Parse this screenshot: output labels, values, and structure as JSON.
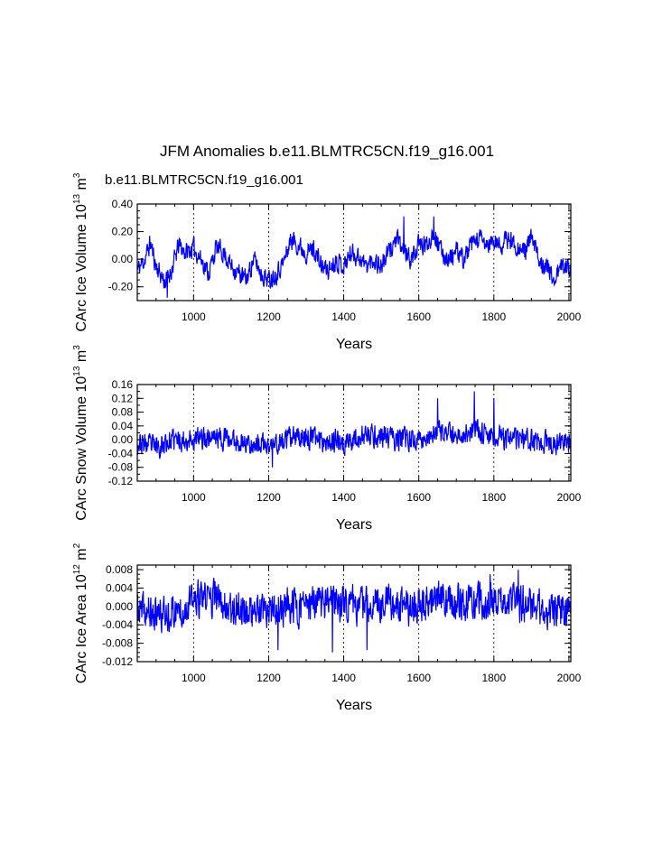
{
  "title": "JFM Anomalies b.e11.BLMTRC5CN.f19_g16.001",
  "subtitle": "b.e11.BLMTRC5CN.f19_g16.001",
  "series_color": "#0000ff",
  "chart_data": [
    {
      "type": "line",
      "title": "JFM Anomalies b.e11.BLMTRC5CN.f19_g16.001",
      "series_name": "b.e11.BLMTRC5CN.f19_g16.001",
      "xlabel": "Years",
      "ylabel": "CArc Ice Volume 10",
      "ylabel_exp": "13",
      "ylabel_unit": " m",
      "ylabel_unit_exp": "3",
      "xlim": [
        850,
        2005
      ],
      "ylim": [
        -0.3,
        0.4
      ],
      "xticks": [
        1000,
        1200,
        1400,
        1600,
        1800,
        2000
      ],
      "xtick_labels": [
        "1000",
        "1200",
        "1400",
        "1600",
        "1800",
        "2000"
      ],
      "yticks": [
        0.4,
        0.2,
        0.0,
        -0.2
      ],
      "ytick_labels": [
        "0.40",
        "0.20",
        "0.00",
        "-0.20"
      ],
      "yminor_step": 0.05,
      "grid": "vertical dotted at major x ticks",
      "anchors": [
        [
          850,
          -0.08
        ],
        [
          870,
          0.0
        ],
        [
          885,
          0.12
        ],
        [
          900,
          -0.05
        ],
        [
          925,
          -0.17
        ],
        [
          945,
          -0.05
        ],
        [
          960,
          0.1
        ],
        [
          980,
          0.05
        ],
        [
          1000,
          0.08
        ],
        [
          1020,
          0.0
        ],
        [
          1040,
          -0.1
        ],
        [
          1060,
          0.08
        ],
        [
          1080,
          0.05
        ],
        [
          1100,
          -0.05
        ],
        [
          1120,
          -0.1
        ],
        [
          1140,
          -0.15
        ],
        [
          1160,
          0.0
        ],
        [
          1180,
          -0.1
        ],
        [
          1200,
          -0.15
        ],
        [
          1220,
          -0.1
        ],
        [
          1240,
          -0.02
        ],
        [
          1260,
          0.15
        ],
        [
          1280,
          0.1
        ],
        [
          1300,
          0.05
        ],
        [
          1320,
          0.08
        ],
        [
          1340,
          -0.05
        ],
        [
          1360,
          -0.08
        ],
        [
          1380,
          0.0
        ],
        [
          1400,
          -0.05
        ],
        [
          1420,
          0.05
        ],
        [
          1440,
          0.02
        ],
        [
          1460,
          -0.05
        ],
        [
          1480,
          0.0
        ],
        [
          1500,
          -0.05
        ],
        [
          1520,
          0.05
        ],
        [
          1540,
          0.15
        ],
        [
          1560,
          0.05
        ],
        [
          1580,
          0.0
        ],
        [
          1600,
          0.1
        ],
        [
          1620,
          0.1
        ],
        [
          1640,
          0.2
        ],
        [
          1660,
          0.05
        ],
        [
          1680,
          0.0
        ],
        [
          1700,
          0.05
        ],
        [
          1720,
          0.0
        ],
        [
          1740,
          0.1
        ],
        [
          1760,
          0.15
        ],
        [
          1780,
          0.1
        ],
        [
          1800,
          0.12
        ],
        [
          1820,
          0.1
        ],
        [
          1840,
          0.15
        ],
        [
          1860,
          0.1
        ],
        [
          1880,
          0.05
        ],
        [
          1900,
          0.15
        ],
        [
          1920,
          0.0
        ],
        [
          1940,
          -0.05
        ],
        [
          1960,
          -0.15
        ],
        [
          1980,
          -0.05
        ],
        [
          2005,
          -0.05
        ]
      ],
      "noise_amplitude": 0.1,
      "extremes": [
        [
          930,
          -0.28
        ],
        [
          1560,
          0.31
        ],
        [
          1640,
          0.31
        ]
      ],
      "seed": 11
    },
    {
      "type": "line",
      "xlabel": "Years",
      "ylabel": "CArc Snow Volume 10",
      "ylabel_exp": "13",
      "ylabel_unit": " m",
      "ylabel_unit_exp": "3",
      "xlim": [
        850,
        2005
      ],
      "ylim": [
        -0.12,
        0.16
      ],
      "xticks": [
        1000,
        1200,
        1400,
        1600,
        1800,
        2000
      ],
      "xtick_labels": [
        "1000",
        "1200",
        "1400",
        "1600",
        "1800",
        "2000"
      ],
      "yticks": [
        0.16,
        0.12,
        0.08,
        0.04,
        0.0,
        -0.04,
        -0.08,
        -0.12
      ],
      "ytick_labels": [
        "0.16",
        "0.12",
        "0.08",
        "0.04",
        "0.00",
        "-0.04",
        "-0.08",
        "-0.12"
      ],
      "yminor_step": 0.02,
      "grid": "vertical dotted at major x ticks",
      "anchors": [
        [
          850,
          -0.01
        ],
        [
          900,
          -0.02
        ],
        [
          950,
          0.0
        ],
        [
          1000,
          0.0
        ],
        [
          1050,
          0.01
        ],
        [
          1100,
          0.0
        ],
        [
          1150,
          -0.01
        ],
        [
          1200,
          -0.02
        ],
        [
          1250,
          0.0
        ],
        [
          1300,
          0.01
        ],
        [
          1350,
          0.0
        ],
        [
          1400,
          -0.01
        ],
        [
          1450,
          0.01
        ],
        [
          1500,
          0.01
        ],
        [
          1550,
          0.0
        ],
        [
          1600,
          0.0
        ],
        [
          1650,
          0.02
        ],
        [
          1700,
          0.01
        ],
        [
          1750,
          0.03
        ],
        [
          1800,
          0.01
        ],
        [
          1850,
          0.0
        ],
        [
          1900,
          0.0
        ],
        [
          1950,
          -0.01
        ],
        [
          2005,
          -0.01
        ]
      ],
      "noise_amplitude": 0.045,
      "extremes": [
        [
          1650,
          0.12
        ],
        [
          1748,
          0.14
        ],
        [
          1800,
          0.12
        ],
        [
          1210,
          -0.08
        ]
      ],
      "seed": 23
    },
    {
      "type": "line",
      "xlabel": "Years",
      "ylabel": "CArc Ice Area 10",
      "ylabel_exp": "12",
      "ylabel_unit": " m",
      "ylabel_unit_exp": "2",
      "xlim": [
        850,
        2005
      ],
      "ylim": [
        -0.012,
        0.009
      ],
      "xticks": [
        1000,
        1200,
        1400,
        1600,
        1800,
        2000
      ],
      "xtick_labels": [
        "1000",
        "1200",
        "1400",
        "1600",
        "1800",
        "2000"
      ],
      "yticks": [
        0.008,
        0.004,
        0.0,
        -0.004,
        -0.008,
        -0.012
      ],
      "ytick_labels": [
        "0.008",
        "0.004",
        "0.000",
        "-0.004",
        "-0.008",
        "-0.012"
      ],
      "yminor_step": 0.001,
      "grid": "vertical dotted at major x ticks",
      "anchors": [
        [
          850,
          -0.001
        ],
        [
          900,
          -0.002
        ],
        [
          950,
          -0.001
        ],
        [
          1000,
          0.001
        ],
        [
          1050,
          0.002
        ],
        [
          1100,
          0.0
        ],
        [
          1150,
          -0.001
        ],
        [
          1200,
          -0.002
        ],
        [
          1250,
          0.0
        ],
        [
          1300,
          0.0
        ],
        [
          1350,
          0.001
        ],
        [
          1400,
          0.001
        ],
        [
          1450,
          0.0
        ],
        [
          1500,
          0.001
        ],
        [
          1550,
          0.0
        ],
        [
          1600,
          0.0
        ],
        [
          1650,
          0.002
        ],
        [
          1700,
          0.001
        ],
        [
          1750,
          0.001
        ],
        [
          1800,
          0.001
        ],
        [
          1850,
          0.001
        ],
        [
          1900,
          0.0
        ],
        [
          1950,
          -0.001
        ],
        [
          2005,
          -0.001
        ]
      ],
      "noise_amplitude": 0.0055,
      "extremes": [
        [
          1225,
          -0.0095
        ],
        [
          1370,
          -0.01
        ],
        [
          1462,
          -0.0095
        ],
        [
          1865,
          0.008
        ],
        [
          1790,
          0.007
        ]
      ],
      "seed": 37
    }
  ]
}
